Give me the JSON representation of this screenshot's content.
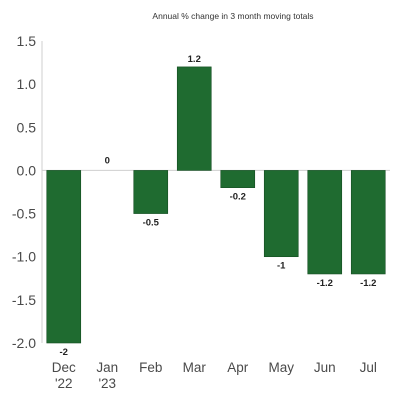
{
  "chart_data": {
    "type": "bar",
    "title": "Annual % change in 3 month moving totals",
    "xlabel": "",
    "ylabel": "",
    "categories": [
      [
        "Dec",
        "'22"
      ],
      [
        "Jan",
        "'23"
      ],
      [
        "Feb"
      ],
      [
        "Mar"
      ],
      [
        "Apr"
      ],
      [
        "May"
      ],
      [
        "Jun"
      ],
      [
        "Jul"
      ]
    ],
    "values": [
      -2,
      0,
      -0.5,
      1.2,
      -0.2,
      -1,
      -1.2,
      -1.2
    ],
    "data_labels": [
      "-2",
      "0",
      "-0.5",
      "1.2",
      "-0.2",
      "-1",
      "-1.2",
      "-1.2"
    ],
    "yticks": [
      "1.5",
      "1.0",
      "0.5",
      "0.0",
      "-0.5",
      "-1.0",
      "-1.5",
      "-2.0"
    ],
    "ytick_values": [
      1.5,
      1.0,
      0.5,
      0.0,
      -0.5,
      -1.0,
      -1.5,
      -2.0
    ],
    "ylim": [
      -2.0,
      1.5
    ],
    "grid": false,
    "legend": "none",
    "colors": {
      "bar": "#1f6b30",
      "bar_stroke": "#154d22",
      "axis": "#cfcfcf"
    }
  }
}
